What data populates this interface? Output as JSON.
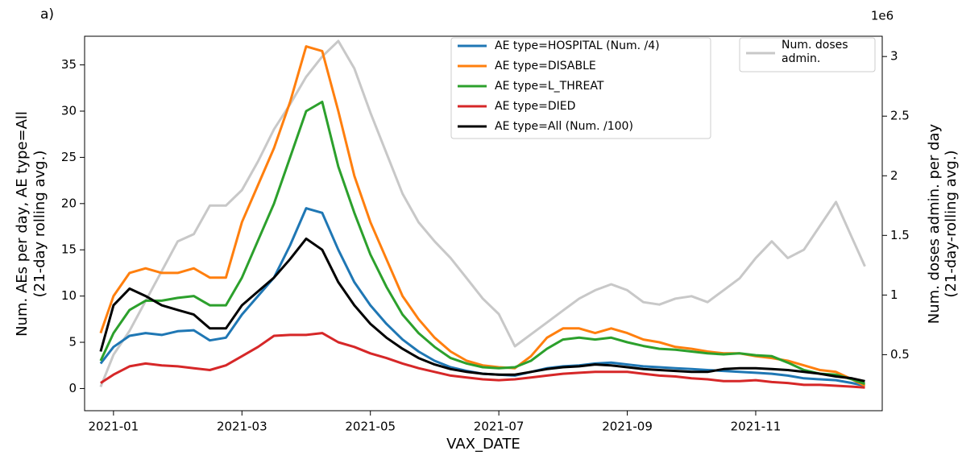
{
  "chart_data": {
    "type": "line",
    "panel_label": "a)",
    "xlabel": "VAX_DATE",
    "ylabel": [
      "Num. AEs per day, AE type=All",
      "(21-day rolling avg.)"
    ],
    "y2label": [
      "Num. doses admin. per day",
      "(21-day-rolling avg.)"
    ],
    "y2_offset_label": "1e6",
    "xlim": [
      0.55,
      12.97
    ],
    "xticks": [
      {
        "value": 1,
        "label": "2021-01"
      },
      {
        "value": 3,
        "label": "2021-03"
      },
      {
        "value": 5,
        "label": "2021-05"
      },
      {
        "value": 7,
        "label": "2021-07"
      },
      {
        "value": 9,
        "label": "2021-09"
      },
      {
        "value": 11,
        "label": "2021-11"
      }
    ],
    "ylim": [
      -2.4,
      38.1
    ],
    "yticks": [
      0,
      5,
      10,
      15,
      20,
      25,
      30,
      35
    ],
    "y2lim": [
      0.03,
      3.17
    ],
    "y2ticks": [
      0.5,
      1.0,
      1.5,
      2.0,
      2.5,
      3.0
    ],
    "x": [
      0.8,
      1,
      1.25,
      1.5,
      1.75,
      2,
      2.25,
      2.5,
      2.75,
      3,
      3.25,
      3.5,
      3.75,
      4,
      4.25,
      4.5,
      4.75,
      5,
      5.25,
      5.5,
      5.75,
      6,
      6.25,
      6.5,
      6.75,
      7,
      7.25,
      7.5,
      7.75,
      8,
      8.25,
      8.5,
      8.75,
      9,
      9.25,
      9.5,
      9.75,
      10,
      10.25,
      10.5,
      10.75,
      11,
      11.25,
      11.5,
      11.75,
      12,
      12.25,
      12.5,
      12.7
    ],
    "series": [
      {
        "name": "Num. doses admin.",
        "color": "#c8c8c8",
        "axis": "y2",
        "values": [
          0.23,
          0.5,
          0.7,
          0.95,
          1.2,
          1.45,
          1.51,
          1.75,
          1.75,
          1.88,
          2.12,
          2.39,
          2.6,
          2.83,
          3.0,
          3.13,
          2.9,
          2.53,
          2.19,
          1.85,
          1.61,
          1.45,
          1.31,
          1.14,
          0.97,
          0.84,
          0.57,
          0.67,
          0.77,
          0.87,
          0.97,
          1.04,
          1.09,
          1.04,
          0.94,
          0.92,
          0.97,
          0.99,
          0.94,
          1.04,
          1.14,
          1.31,
          1.45,
          1.31,
          1.38,
          1.58,
          1.78,
          1.48,
          1.24
        ]
      },
      {
        "name": "AE type=HOSPITAL (Num. /4)",
        "color": "#1f77b4",
        "values": [
          2.7,
          4.5,
          5.7,
          6,
          5.8,
          6.2,
          6.3,
          5.2,
          5.5,
          8,
          10,
          12,
          15.5,
          19.5,
          19,
          15,
          11.5,
          9,
          7,
          5.3,
          4,
          3,
          2.3,
          1.9,
          1.6,
          1.5,
          1.4,
          1.8,
          2.2,
          2.4,
          2.5,
          2.7,
          2.8,
          2.6,
          2.4,
          2.3,
          2.2,
          2.1,
          2.0,
          1.9,
          1.8,
          1.7,
          1.6,
          1.4,
          1.1,
          1.0,
          0.9,
          0.6,
          0.3
        ]
      },
      {
        "name": "AE type=DISABLE",
        "color": "#ff7f0e",
        "values": [
          6,
          10,
          12.5,
          13,
          12.5,
          12.5,
          13,
          12,
          12,
          18,
          22,
          26,
          31,
          37,
          36.5,
          30,
          23,
          18,
          14,
          10,
          7.5,
          5.5,
          4,
          3,
          2.5,
          2.3,
          2.2,
          3.5,
          5.5,
          6.5,
          6.5,
          6,
          6.5,
          6,
          5.3,
          5,
          4.5,
          4.3,
          4,
          3.8,
          3.8,
          3.5,
          3.3,
          3,
          2.5,
          2,
          1.8,
          1,
          0.3
        ]
      },
      {
        "name": "AE type=L_THREAT",
        "color": "#2ca02c",
        "values": [
          3,
          6,
          8.5,
          9.5,
          9.5,
          9.8,
          10,
          9,
          9,
          12,
          16,
          20,
          25,
          30,
          31,
          24,
          19,
          14.5,
          11,
          8,
          6,
          4.5,
          3.3,
          2.7,
          2.3,
          2.2,
          2.3,
          3,
          4.3,
          5.3,
          5.5,
          5.3,
          5.5,
          5,
          4.6,
          4.3,
          4.2,
          4,
          3.8,
          3.7,
          3.8,
          3.6,
          3.5,
          2.8,
          2,
          1.6,
          1.5,
          1,
          0.5
        ]
      },
      {
        "name": "AE type=DIED",
        "color": "#d62728",
        "values": [
          0.6,
          1.5,
          2.4,
          2.7,
          2.5,
          2.4,
          2.2,
          2.0,
          2.5,
          3.5,
          4.5,
          5.7,
          5.8,
          5.8,
          6,
          5,
          4.5,
          3.8,
          3.3,
          2.7,
          2.2,
          1.8,
          1.4,
          1.2,
          1.0,
          0.9,
          1.0,
          1.2,
          1.4,
          1.6,
          1.7,
          1.8,
          1.8,
          1.8,
          1.6,
          1.4,
          1.3,
          1.1,
          1.0,
          0.8,
          0.8,
          0.9,
          0.7,
          0.6,
          0.4,
          0.4,
          0.3,
          0.2,
          0.1
        ]
      },
      {
        "name": "AE type=All (Num. /100)",
        "color": "#000000",
        "values": [
          4,
          9,
          10.8,
          10,
          9,
          8.5,
          8,
          6.5,
          6.5,
          9,
          10.5,
          12,
          14,
          16.2,
          15,
          11.5,
          9,
          7,
          5.5,
          4.3,
          3.3,
          2.6,
          2.1,
          1.8,
          1.6,
          1.5,
          1.5,
          1.8,
          2.1,
          2.3,
          2.4,
          2.6,
          2.5,
          2.3,
          2.1,
          2.0,
          1.9,
          1.8,
          1.8,
          2.1,
          2.2,
          2.2,
          2.1,
          2.0,
          1.8,
          1.6,
          1.3,
          1.1,
          0.8
        ]
      }
    ]
  }
}
